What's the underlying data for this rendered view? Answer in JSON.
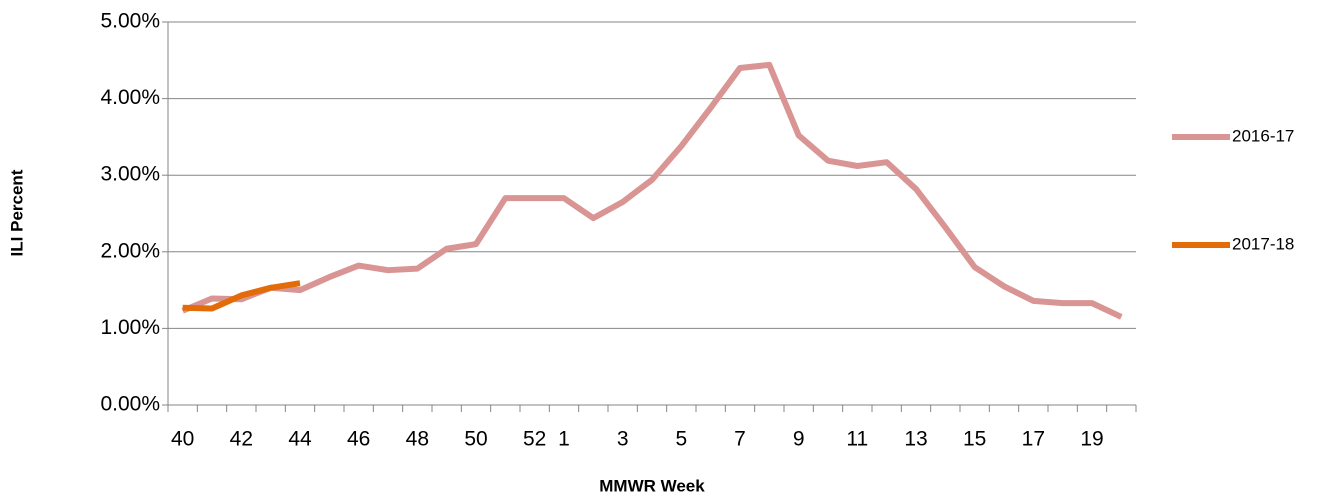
{
  "chart_data": {
    "type": "line",
    "x_label": "MMWR Week",
    "y_label": "ILI Percent",
    "categories": [
      "40",
      null,
      "42",
      null,
      "44",
      null,
      "46",
      null,
      "48",
      null,
      "50",
      null,
      "52",
      "1",
      null,
      "3",
      null,
      "5",
      null,
      "7",
      null,
      "9",
      null,
      "11",
      null,
      "13",
      null,
      "15",
      null,
      "17",
      null,
      "19",
      null
    ],
    "series": [
      {
        "name": "2016-17",
        "color": "#d99594",
        "values": [
          1.23,
          1.39,
          1.38,
          1.53,
          1.5,
          1.67,
          1.82,
          1.76,
          1.78,
          2.04,
          2.1,
          2.7,
          2.7,
          2.7,
          2.44,
          2.65,
          2.94,
          3.38,
          3.88,
          4.4,
          4.44,
          3.52,
          3.19,
          3.12,
          3.17,
          2.82,
          2.32,
          1.8,
          1.55,
          1.36,
          1.33,
          1.33,
          1.15
        ]
      },
      {
        "name": "2017-18",
        "color": "#e36c0a",
        "values": [
          1.27,
          1.26,
          1.43,
          1.53,
          1.59,
          null,
          null,
          null,
          null,
          null,
          null,
          null,
          null,
          null,
          null,
          null,
          null,
          null,
          null,
          null,
          null,
          null,
          null,
          null,
          null,
          null,
          null,
          null,
          null,
          null,
          null,
          null,
          null
        ]
      }
    ],
    "ylim": [
      0,
      5
    ],
    "yticks": [
      {
        "value": 0,
        "label": "0.00%"
      },
      {
        "value": 1,
        "label": "1.00%"
      },
      {
        "value": 2,
        "label": "2.00%"
      },
      {
        "value": 3,
        "label": "3.00%"
      },
      {
        "value": 4,
        "label": "4.00%"
      },
      {
        "value": 5,
        "label": "5.00%"
      }
    ],
    "grid": true,
    "legend": "right"
  }
}
